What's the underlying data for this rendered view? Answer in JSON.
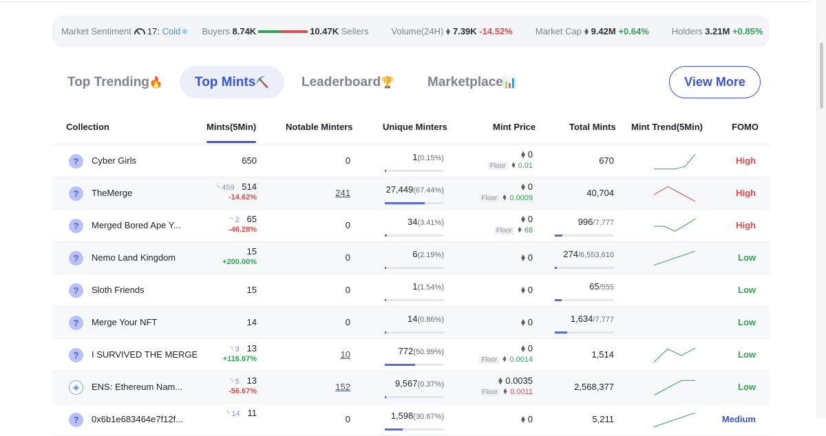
{
  "ticker": {
    "sentiment_label": "Market Sentiment",
    "sentiment_value": "17:",
    "sentiment_text": "Cold",
    "buyers_label": "Buyers",
    "buyers_value": "8.74K",
    "buy_fraction": 0.455,
    "sellers_value": "10.47K",
    "sellers_label": "Sellers",
    "volume_label": "Volume(24H)",
    "volume_value": "7.39K",
    "volume_change": "-14.52%",
    "mcap_label": "Market Cap",
    "mcap_value": "9.42M",
    "mcap_change": "+0.64%",
    "holders_label": "Holders",
    "holders_value": "3.21M",
    "holders_change": "+0.85%"
  },
  "tabs": {
    "trending": {
      "label": "Top Trending",
      "emoji": "🔥"
    },
    "mints": {
      "label": "Top Mints",
      "emoji": "⛏️"
    },
    "leaderboard": {
      "label": "Leaderboard",
      "emoji": "🏆"
    },
    "marketplace": {
      "label": "Marketplace",
      "emoji": "📊"
    },
    "view_more": "View More"
  },
  "table": {
    "headers": {
      "collection": "Collection",
      "mints": "Mints(5Min)",
      "notable": "Notable Minters",
      "unique": "Unique Minters",
      "price": "Mint Price",
      "total": "Total Mints",
      "trend": "Mint Trend(5Min)",
      "fomo": "FOMO"
    },
    "floor_label": "Floor",
    "rows": [
      {
        "name": "Cyber Girls",
        "avatar": "?",
        "mints": "650",
        "spin": "",
        "change": "",
        "change_dir": "",
        "notable": "0",
        "notable_link": false,
        "unique": "1",
        "unique_pct": "(0.15%)",
        "unique_frac": 0.0015,
        "price": "0",
        "floor": "0.01",
        "floor_dir": "pos",
        "total": "670",
        "total_max": "",
        "total_frac": null,
        "trend": [
          0.05,
          0.05,
          0.05,
          0.2,
          0.95
        ],
        "trend_dir": "up",
        "fomo": "High",
        "fomo_level": "high"
      },
      {
        "name": "TheMerge",
        "avatar": "?",
        "mints": "514",
        "spin": "459",
        "change": "-14.62%",
        "change_dir": "neg",
        "notable": "241",
        "notable_link": true,
        "unique": "27,449",
        "unique_pct": "(67.44%)",
        "unique_frac": 0.6744,
        "price": "0",
        "floor": "0.0009",
        "floor_dir": "pos",
        "total": "40,704",
        "total_max": "",
        "total_frac": null,
        "trend": [
          0.45,
          0.95,
          0.5,
          0.05
        ],
        "trend_dir": "down",
        "fomo": "High",
        "fomo_level": "high"
      },
      {
        "name": "Merged Bored Ape Y...",
        "avatar": "?",
        "mints": "65",
        "spin": "2",
        "change": "-46.28%",
        "change_dir": "neg",
        "notable": "0",
        "notable_link": false,
        "unique": "34",
        "unique_pct": "(3.41%)",
        "unique_frac": 0.0341,
        "price": "0",
        "floor": "68",
        "floor_dir": "pos",
        "total": "996",
        "total_max": "/7,777",
        "total_frac": 0.128,
        "trend": [
          0.5,
          0.5,
          0.2,
          0.55,
          0.95
        ],
        "trend_dir": "up",
        "fomo": "High",
        "fomo_level": "high"
      },
      {
        "name": "Nemo Land Kingdom",
        "avatar": "?",
        "mints": "15",
        "spin": "",
        "change": "+200.00%",
        "change_dir": "pos",
        "notable": "0",
        "notable_link": false,
        "unique": "6",
        "unique_pct": "(2.19%)",
        "unique_frac": 0.0219,
        "price": "0",
        "floor": "",
        "floor_dir": "",
        "total": "274",
        "total_max": "/6,553,610",
        "total_frac": 0.0001,
        "trend": [
          0.1,
          0.95
        ],
        "trend_dir": "up",
        "fomo": "Low",
        "fomo_level": "low"
      },
      {
        "name": "Sloth Friends",
        "avatar": "?",
        "mints": "15",
        "spin": "",
        "change": "",
        "change_dir": "",
        "notable": "0",
        "notable_link": false,
        "unique": "1",
        "unique_pct": "(1.54%)",
        "unique_frac": 0.0154,
        "price": "0",
        "floor": "",
        "floor_dir": "",
        "total": "65",
        "total_max": "/555",
        "total_frac": 0.117,
        "trend": [],
        "trend_dir": "",
        "fomo": "Low",
        "fomo_level": "low"
      },
      {
        "name": "Merge Your NFT",
        "avatar": "?",
        "mints": "14",
        "spin": "",
        "change": "",
        "change_dir": "",
        "notable": "0",
        "notable_link": false,
        "unique": "14",
        "unique_pct": "(0.86%)",
        "unique_frac": 0.0086,
        "price": "0",
        "floor": "",
        "floor_dir": "",
        "total": "1,634",
        "total_max": "/7,777",
        "total_frac": 0.21,
        "trend": [],
        "trend_dir": "",
        "fomo": "Low",
        "fomo_level": "low"
      },
      {
        "name": "I SURVIVED THE MERGE",
        "avatar": "?",
        "mints": "13",
        "spin": "3",
        "change": "+116.67%",
        "change_dir": "pos",
        "notable": "10",
        "notable_link": true,
        "unique": "772",
        "unique_pct": "(50.99%)",
        "unique_frac": 0.5099,
        "price": "0",
        "floor": "0.0014",
        "floor_dir": "pos",
        "total": "1,514",
        "total_max": "",
        "total_frac": null,
        "trend": [
          0.1,
          0.9,
          0.5,
          0.95
        ],
        "trend_dir": "up",
        "fomo": "Low",
        "fomo_level": "low"
      },
      {
        "name": "ENS: Ethereum Nam...",
        "avatar": "◈",
        "mints": "13",
        "spin": "5",
        "change": "-56.67%",
        "change_dir": "neg",
        "notable": "152",
        "notable_link": true,
        "unique": "9,567",
        "unique_pct": "(0.37%)",
        "unique_frac": 0.0037,
        "price": "0.0035",
        "floor": "0.0011",
        "floor_dir": "neg",
        "total": "2,568,377",
        "total_max": "",
        "total_frac": null,
        "trend": [
          0.05,
          0.5,
          0.95,
          0.95
        ],
        "trend_dir": "up",
        "fomo": "Low",
        "fomo_level": "low"
      },
      {
        "name": "0x6b1e683464e7f12f...",
        "avatar": "?",
        "mints": "11",
        "spin": "14",
        "change": "",
        "change_dir": "",
        "notable": "0",
        "notable_link": false,
        "unique": "1,598",
        "unique_pct": "(30.67%)",
        "unique_frac": 0.3067,
        "price": "0",
        "floor": "",
        "floor_dir": "",
        "total": "5,211",
        "total_max": "",
        "total_frac": null,
        "trend": [
          0.1,
          0.95
        ],
        "trend_dir": "up",
        "fomo": "Medium",
        "fomo_level": "medium"
      }
    ]
  }
}
